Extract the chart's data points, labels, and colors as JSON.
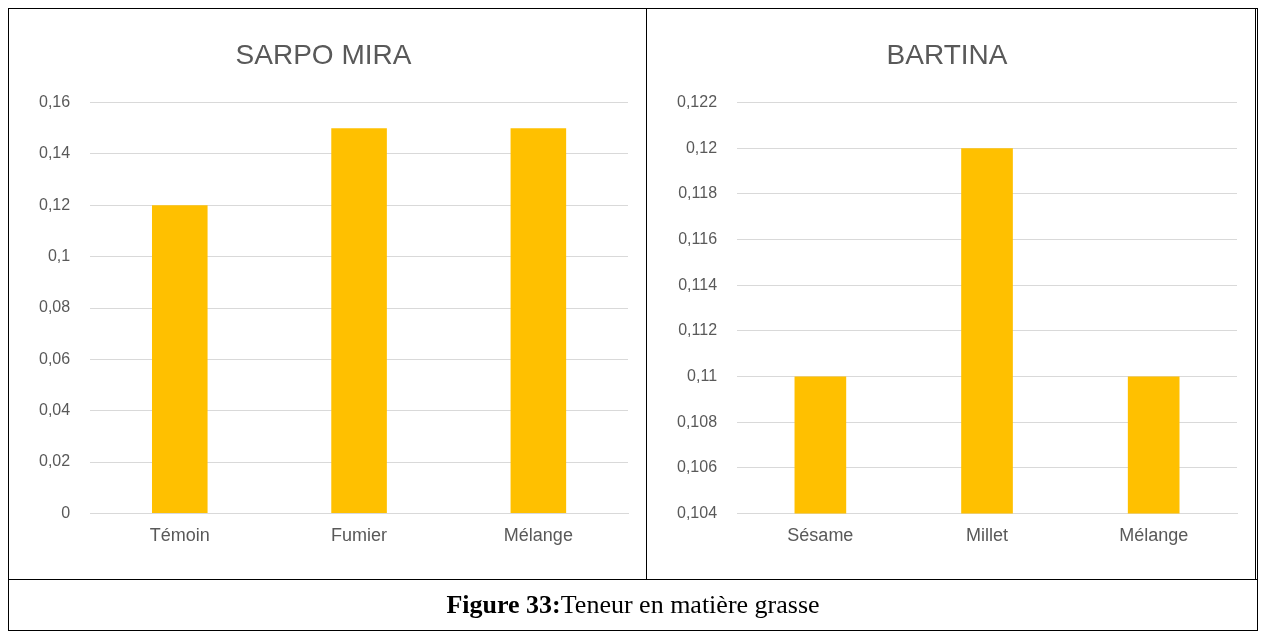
{
  "chart_data": [
    {
      "type": "bar",
      "title": "SARPO MIRA",
      "categories": [
        "Témoin",
        "Fumier",
        "Mélange"
      ],
      "values": [
        0.12,
        0.15,
        0.15
      ],
      "color": "#ffc000",
      "ylim": [
        0,
        0.16
      ],
      "yticks": [
        {
          "value": 0,
          "label": "0"
        },
        {
          "value": 0.02,
          "label": "0,02"
        },
        {
          "value": 0.04,
          "label": "0,04"
        },
        {
          "value": 0.06,
          "label": "0,06"
        },
        {
          "value": 0.08,
          "label": "0,08"
        },
        {
          "value": 0.1,
          "label": "0,1"
        },
        {
          "value": 0.12,
          "label": "0,12"
        },
        {
          "value": 0.14,
          "label": "0,14"
        },
        {
          "value": 0.16,
          "label": "0,16"
        }
      ],
      "grid": "y",
      "legend": false,
      "annotations": [
        "Figure 33:Teneur en matière grasse"
      ]
    },
    {
      "type": "bar",
      "title": "BARTINA",
      "categories": [
        "Sésame",
        "Millet",
        "Mélange"
      ],
      "values": [
        0.11,
        0.12,
        0.11
      ],
      "color": "#ffc000",
      "ylim": [
        0.104,
        0.122
      ],
      "yticks": [
        {
          "value": 0.104,
          "label": "0,104"
        },
        {
          "value": 0.106,
          "label": "0,106"
        },
        {
          "value": 0.108,
          "label": "0,108"
        },
        {
          "value": 0.11,
          "label": "0,11"
        },
        {
          "value": 0.112,
          "label": "0,112"
        },
        {
          "value": 0.114,
          "label": "0,114"
        },
        {
          "value": 0.116,
          "label": "0,116"
        },
        {
          "value": 0.118,
          "label": "0,118"
        },
        {
          "value": 0.12,
          "label": "0,12"
        },
        {
          "value": 0.122,
          "label": "0,122"
        }
      ],
      "grid": "y",
      "legend": false
    }
  ]
}
